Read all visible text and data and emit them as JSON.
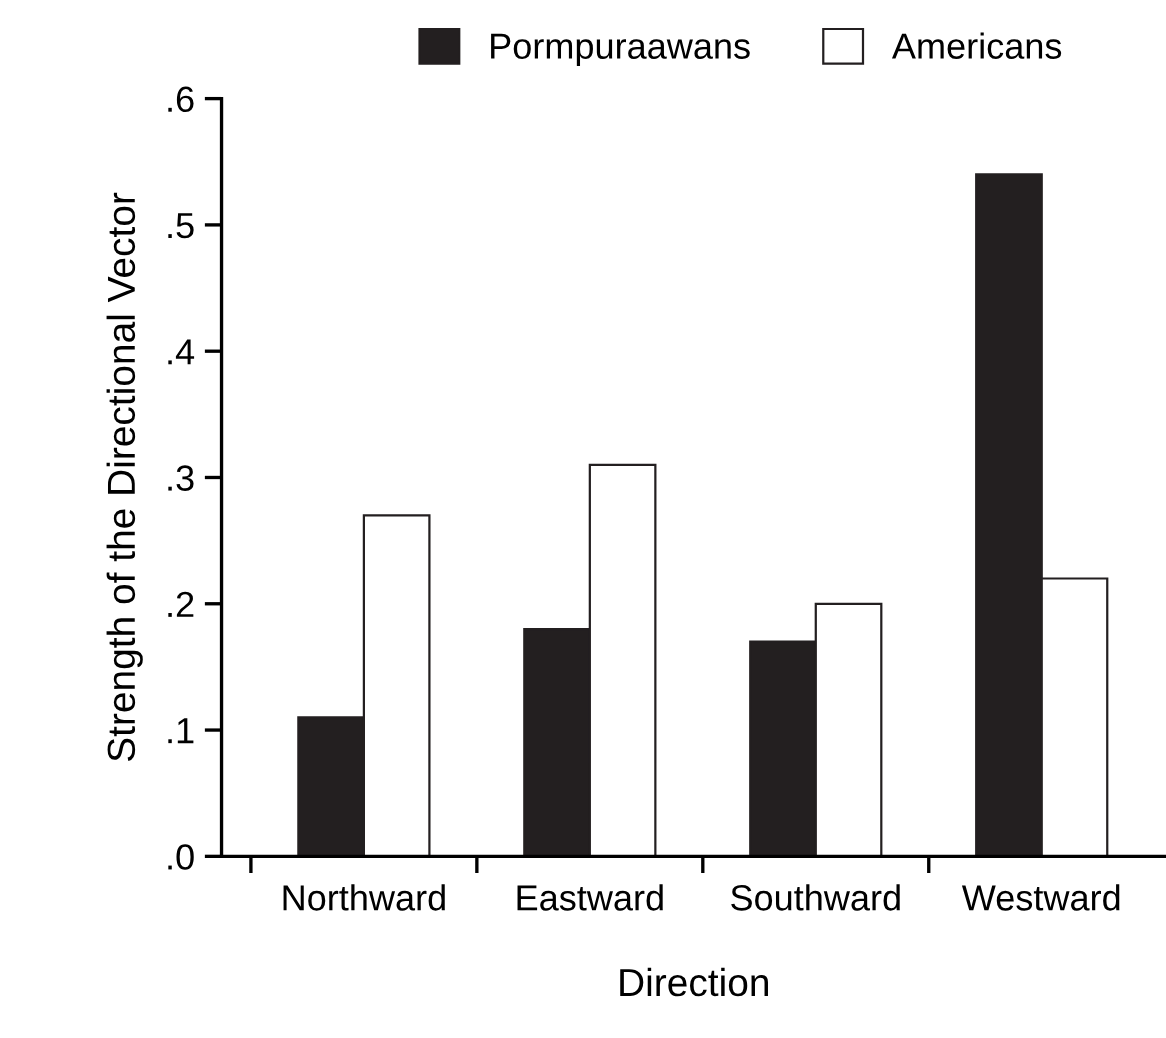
{
  "chart_data": {
    "type": "bar",
    "xlabel": "Direction",
    "ylabel": "Strength of the Directional Vector",
    "categories": [
      "Northward",
      "Eastward",
      "Southward",
      "Westward"
    ],
    "series": [
      {
        "name": "Pormpuraawans",
        "color": "#231f20",
        "values": [
          0.11,
          0.18,
          0.17,
          0.54
        ]
      },
      {
        "name": "Americans",
        "color": "#ffffff",
        "values": [
          0.27,
          0.31,
          0.2,
          0.22
        ]
      }
    ],
    "ylim": [
      0,
      0.6
    ],
    "yticks": [
      {
        "value": 0,
        "label": ".0"
      },
      {
        "value": 0.1,
        "label": ".1"
      },
      {
        "value": 0.2,
        "label": ".2"
      },
      {
        "value": 0.3,
        "label": ".3"
      },
      {
        "value": 0.4,
        "label": ".4"
      },
      {
        "value": 0.5,
        "label": ".5"
      },
      {
        "value": 0.6,
        "label": ".6"
      }
    ],
    "grid": false,
    "legend": "top"
  }
}
